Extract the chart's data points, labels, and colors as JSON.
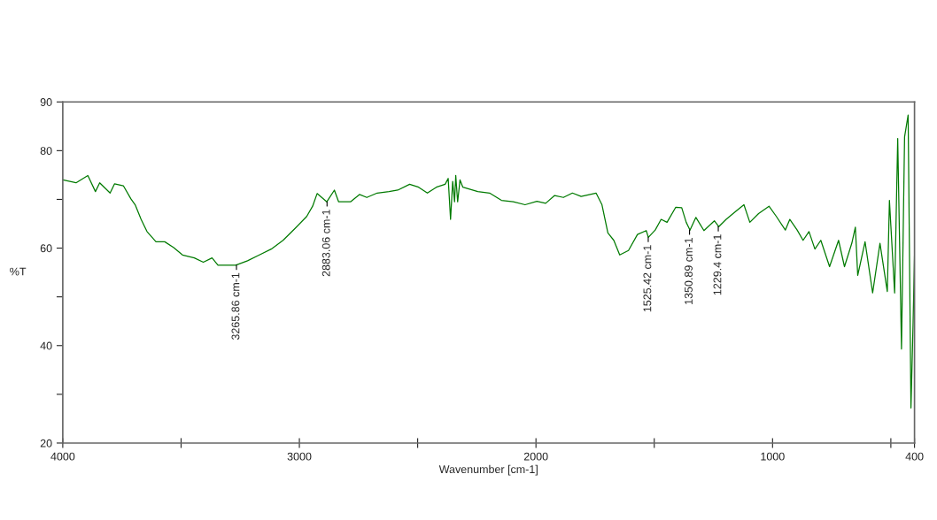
{
  "chart_data": {
    "type": "line",
    "xlabel": "Wavenumber [cm-1]",
    "ylabel": "%T",
    "x": [
      4000,
      3944,
      3894,
      3862,
      3844,
      3800,
      3781,
      3744,
      3712,
      3694,
      3669,
      3644,
      3606,
      3569,
      3531,
      3494,
      3444,
      3406,
      3369,
      3344,
      3269,
      3219,
      3169,
      3119,
      3069,
      3019,
      2969,
      2944,
      2925,
      2884,
      2852,
      2834,
      2784,
      2746,
      2715,
      2671,
      2621,
      2584,
      2534,
      2496,
      2459,
      2421,
      2384,
      2371,
      2361,
      2352,
      2344,
      2339,
      2331,
      2321,
      2309,
      2246,
      2196,
      2146,
      2096,
      2046,
      1996,
      1959,
      1921,
      1884,
      1846,
      1809,
      1746,
      1721,
      1696,
      1671,
      1646,
      1609,
      1571,
      1534,
      1525,
      1496,
      1471,
      1446,
      1409,
      1384,
      1365,
      1349,
      1324,
      1290,
      1246,
      1227,
      1196,
      1159,
      1121,
      1096,
      1059,
      1015,
      984,
      946,
      927,
      896,
      871,
      846,
      821,
      796,
      759,
      721,
      696,
      665,
      650,
      640,
      609,
      577,
      546,
      515,
      506,
      484,
      471,
      455,
      442,
      427,
      415,
      406,
      400
    ],
    "series": [
      {
        "color": "#007a00",
        "values": [
          74.0,
          73.4,
          74.9,
          71.6,
          73.4,
          71.3,
          73.2,
          72.8,
          70.1,
          68.9,
          65.9,
          63.4,
          61.3,
          61.3,
          60.1,
          58.6,
          58.0,
          57.1,
          58.0,
          56.5,
          56.5,
          57.4,
          58.6,
          59.8,
          61.6,
          64.0,
          66.5,
          68.6,
          71.2,
          69.5,
          71.9,
          69.5,
          69.5,
          71.0,
          70.4,
          71.3,
          71.6,
          71.9,
          73.1,
          72.5,
          71.3,
          72.5,
          73.1,
          74.3,
          65.9,
          73.7,
          69.5,
          74.9,
          69.5,
          74.0,
          72.5,
          71.6,
          71.3,
          69.8,
          69.5,
          68.9,
          69.6,
          69.2,
          70.8,
          70.4,
          71.3,
          70.6,
          71.3,
          68.9,
          63.1,
          61.6,
          58.6,
          59.5,
          62.8,
          63.6,
          62.2,
          63.7,
          65.9,
          65.3,
          68.4,
          68.3,
          65.3,
          63.7,
          66.3,
          63.6,
          65.6,
          64.4,
          65.9,
          67.4,
          68.9,
          65.3,
          67.1,
          68.6,
          66.5,
          63.7,
          65.9,
          63.7,
          61.6,
          63.4,
          59.8,
          61.6,
          56.2,
          61.6,
          56.2,
          61.0,
          64.3,
          54.4,
          61.3,
          50.8,
          61.0,
          51.1,
          69.8,
          50.8,
          82.5,
          39.3,
          82.8,
          87.3,
          27.2,
          44.7,
          58.6
        ]
      }
    ],
    "xlim": [
      4000,
      400
    ],
    "ylim": [
      20,
      90
    ],
    "xticks": [
      4000,
      {
        "value": 3500,
        "label": null
      },
      3000,
      {
        "value": 2500,
        "label": null
      },
      2000,
      {
        "value": 1500,
        "label": null
      },
      1000,
      {
        "value": 500,
        "label": null
      },
      400
    ],
    "yticks": [
      20,
      {
        "value": 30,
        "label": null
      },
      40,
      {
        "value": 50,
        "label": null
      },
      60,
      {
        "value": 70,
        "label": null
      },
      80,
      90
    ],
    "annotations": [
      {
        "text": "3265.86 cm-1",
        "x": 3265.86,
        "y": 56.5
      },
      {
        "text": "2883.06 cm-1",
        "x": 2883.06,
        "y": 69.5
      },
      {
        "text": "1525.42 cm-1",
        "x": 1525.42,
        "y": 62.2
      },
      {
        "text": "1350.89 cm-1",
        "x": 1350.89,
        "y": 63.7
      },
      {
        "text": "1229.4 cm-1",
        "x": 1229.4,
        "y": 64.4
      }
    ],
    "grid": false
  }
}
